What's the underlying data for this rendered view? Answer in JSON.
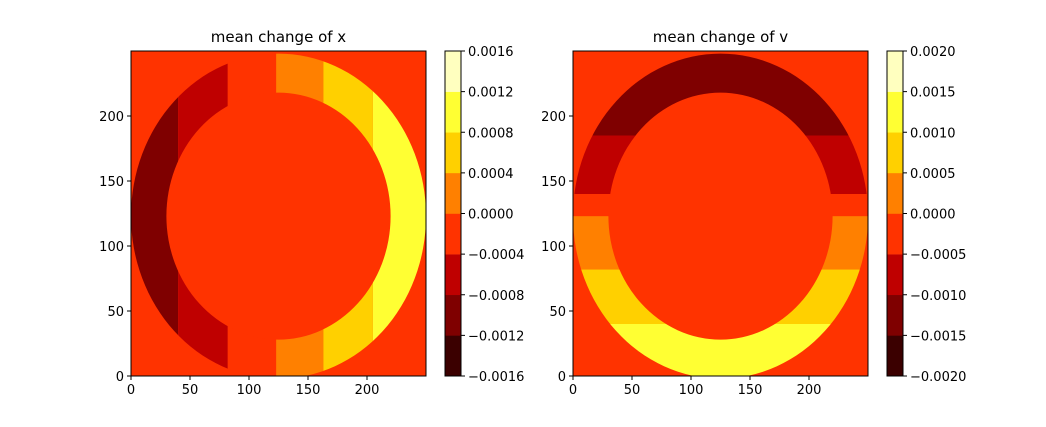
{
  "chart_data": [
    {
      "type": "heatmap",
      "title": "mean change of x",
      "xlabel": "",
      "ylabel": "",
      "xlim": [
        0,
        250
      ],
      "ylim": [
        0,
        250
      ],
      "xticks": [
        0,
        50,
        100,
        150,
        200
      ],
      "yticks": [
        0,
        50,
        100,
        150,
        200
      ],
      "grid": false,
      "colormap": "hot",
      "colorbar": {
        "levels": [
          -0.0016,
          -0.0012,
          -0.0008,
          -0.0004,
          0.0,
          0.0004,
          0.0008,
          0.0012,
          0.0016
        ],
        "tick_labels": [
          "−0.0016",
          "−0.0012",
          "−0.0008",
          "−0.0004",
          "0.0000",
          "0.0004",
          "0.0008",
          "0.0012",
          "0.0016"
        ],
        "colors": [
          "#3b0000",
          "#7f0000",
          "#bf0000",
          "#ff3300",
          "#ff8000",
          "#ffd000",
          "#ffff33",
          "#ffffbf"
        ]
      },
      "pattern": "ring",
      "background": "#ff3300",
      "ring": {
        "cx": 125,
        "cy": 123,
        "r_inner": 95,
        "r_outer": 125
      },
      "regions_x": [
        {
          "from": 0,
          "to": 40,
          "color": "#7f0000"
        },
        {
          "from": 40,
          "to": 82,
          "color": "#bf0000"
        },
        {
          "from": 82,
          "to": 123,
          "color": "#ff3300"
        },
        {
          "from": 123,
          "to": 163,
          "color": "#ff8000"
        },
        {
          "from": 163,
          "to": 205,
          "color": "#ffd000"
        },
        {
          "from": 205,
          "to": 250,
          "color": "#ffff33"
        }
      ]
    },
    {
      "type": "heatmap",
      "title": "mean change of v",
      "xlabel": "",
      "ylabel": "",
      "xlim": [
        0,
        250
      ],
      "ylim": [
        0,
        250
      ],
      "xticks": [
        0,
        50,
        100,
        150,
        200
      ],
      "yticks": [
        0,
        50,
        100,
        150,
        200
      ],
      "grid": false,
      "colormap": "hot",
      "colorbar": {
        "levels": [
          -0.002,
          -0.0015,
          -0.001,
          -0.0005,
          0.0,
          0.0005,
          0.001,
          0.0015,
          0.002
        ],
        "tick_labels": [
          "−0.0020",
          "−0.0015",
          "−0.0010",
          "−0.0005",
          "0.0000",
          "0.0005",
          "0.0010",
          "0.0015",
          "0.0020"
        ],
        "colors": [
          "#3b0000",
          "#7f0000",
          "#bf0000",
          "#ff3300",
          "#ff8000",
          "#ffd000",
          "#ffff33",
          "#ffffbf"
        ]
      },
      "pattern": "ring",
      "background": "#ff3300",
      "ring": {
        "cx": 125,
        "cy": 123,
        "r_inner": 95,
        "r_outer": 125
      },
      "regions_y": [
        {
          "from": 0,
          "to": 40,
          "color": "#ffff33"
        },
        {
          "from": 40,
          "to": 82,
          "color": "#ffd000"
        },
        {
          "from": 82,
          "to": 123,
          "color": "#ff8000"
        },
        {
          "from": 123,
          "to": 140,
          "color": "#ff3300"
        },
        {
          "from": 140,
          "to": 185,
          "color": "#bf0000"
        },
        {
          "from": 185,
          "to": 250,
          "color": "#7f0000"
        }
      ]
    }
  ]
}
